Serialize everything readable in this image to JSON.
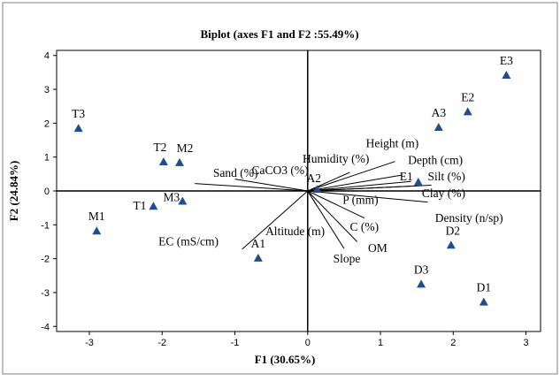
{
  "chart_data": {
    "type": "scatter",
    "title": "Biplot (axes F1 and F2 :55.49%)",
    "xlabel": "F1 (30.65%)",
    "ylabel": "F2 (24.84%)",
    "xlim": [
      -3.45,
      3.2
    ],
    "ylim": [
      -4.15,
      4.15
    ],
    "xticks": [
      "-3",
      "-2",
      "-1",
      "0",
      "1",
      "2",
      "3"
    ],
    "yticks": [
      "4",
      "3",
      "2",
      "1",
      "0",
      "-1",
      "-2",
      "-3",
      "-4"
    ],
    "xtick_values": [
      -3,
      -2,
      -1,
      0,
      1,
      2,
      3
    ],
    "ytick_values": [
      4,
      3,
      2,
      1,
      0,
      -1,
      -2,
      -3,
      -4
    ],
    "marker_color": "#1f4e8c",
    "observations": [
      {
        "label": "E3",
        "x": 2.73,
        "y": 3.42
      },
      {
        "label": "E2",
        "x": 2.2,
        "y": 2.34
      },
      {
        "label": "A3",
        "x": 1.8,
        "y": 1.88
      },
      {
        "label": "T3",
        "x": -3.15,
        "y": 1.85
      },
      {
        "label": "T2",
        "x": -1.98,
        "y": 0.86
      },
      {
        "label": "M2",
        "x": -1.76,
        "y": 0.84
      },
      {
        "label": "E1",
        "x": 1.52,
        "y": 0.26
      },
      {
        "label": "A2",
        "x": 0.13,
        "y": 0.05
      },
      {
        "label": "T1",
        "x": -2.12,
        "y": -0.45
      },
      {
        "label": "M3",
        "x": -1.72,
        "y": -0.3
      },
      {
        "label": "M1",
        "x": -2.9,
        "y": -1.18
      },
      {
        "label": "D2",
        "x": 1.97,
        "y": -1.6
      },
      {
        "label": "A1",
        "x": -0.68,
        "y": -1.98
      },
      {
        "label": "D3",
        "x": 1.56,
        "y": -2.75
      },
      {
        "label": "D1",
        "x": 2.42,
        "y": -3.28
      }
    ],
    "variables": [
      {
        "label": "CaCO3 (%)",
        "x": -1.0,
        "y": 0.35
      },
      {
        "label": "Sand (%)",
        "x": -1.55,
        "y": 0.22
      },
      {
        "label": "Humidity (%)",
        "x": 0.58,
        "y": 0.55
      },
      {
        "label": "Height (m)",
        "x": 1.2,
        "y": 0.87
      },
      {
        "label": "Depth (cm)",
        "x": 1.3,
        "y": 0.47
      },
      {
        "label": "Silt (%)",
        "x": 1.42,
        "y": 0.28
      },
      {
        "label": "P (mm)",
        "x": 1.5,
        "y": 0.15
      },
      {
        "label": "Clay (%)",
        "x": 1.7,
        "y": 0.17
      },
      {
        "label": "Density (n/sp)",
        "x": 1.65,
        "y": -0.33
      },
      {
        "label": "C (%)",
        "x": 0.78,
        "y": -0.8
      },
      {
        "label": "OM",
        "x": 0.68,
        "y": -1.5
      },
      {
        "label": "Slope",
        "x": 0.5,
        "y": -1.7
      },
      {
        "label": "Altitude (m)",
        "x": 0.13,
        "y": -0.45
      },
      {
        "label": "EC (mS/cm)",
        "x": -0.9,
        "y": -1.72
      }
    ]
  }
}
